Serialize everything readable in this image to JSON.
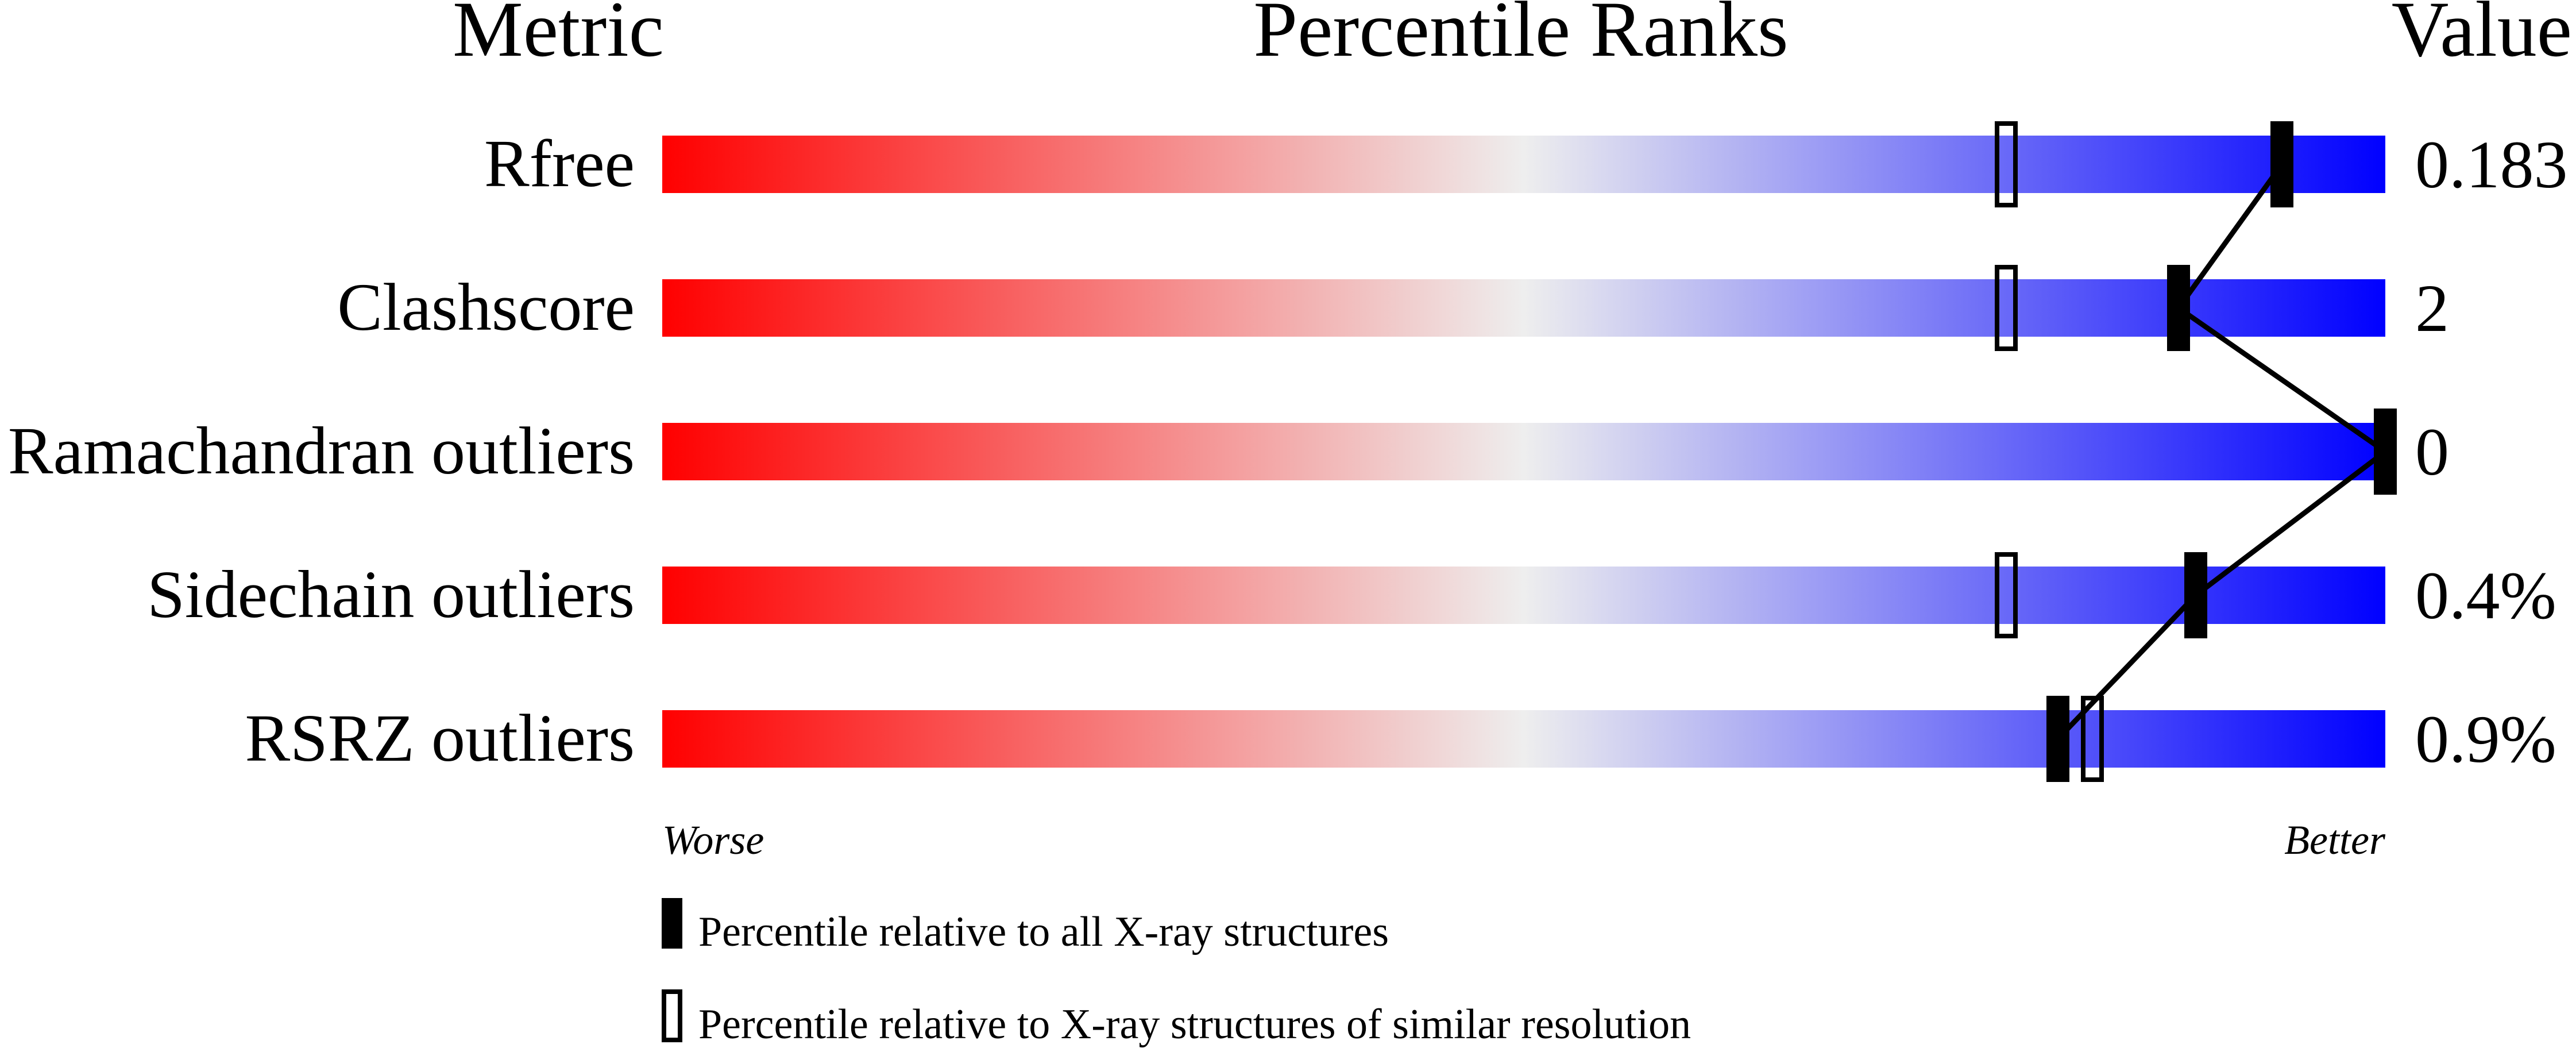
{
  "chart_data": {
    "type": "percentile-bar",
    "headers": {
      "metric": "Metric",
      "percentile": "Percentile Ranks",
      "value": "Value"
    },
    "axis_min": 0,
    "axis_max": 100,
    "worse_label": "Worse",
    "better_label": "Better",
    "gradient_colors": [
      "#ff0000",
      "#eeeeee",
      "#0000ff"
    ],
    "metrics": [
      {
        "name": "Rfree",
        "value": "0.183",
        "percentile_all": 94,
        "percentile_similar": 78
      },
      {
        "name": "Clashscore",
        "value": "2",
        "percentile_all": 88,
        "percentile_similar": 78
      },
      {
        "name": "Ramachandran outliers",
        "value": "0",
        "percentile_all": 100,
        "percentile_similar": null
      },
      {
        "name": "Sidechain outliers",
        "value": "0.4%",
        "percentile_all": 89,
        "percentile_similar": 78
      },
      {
        "name": "RSRZ outliers",
        "value": "0.9%",
        "percentile_all": 81,
        "percentile_similar": 83
      }
    ],
    "legend": [
      {
        "marker": "filled",
        "label": "Percentile relative to all X-ray structures"
      },
      {
        "marker": "outline",
        "label": "Percentile relative to X-ray structures of similar resolution"
      }
    ]
  }
}
